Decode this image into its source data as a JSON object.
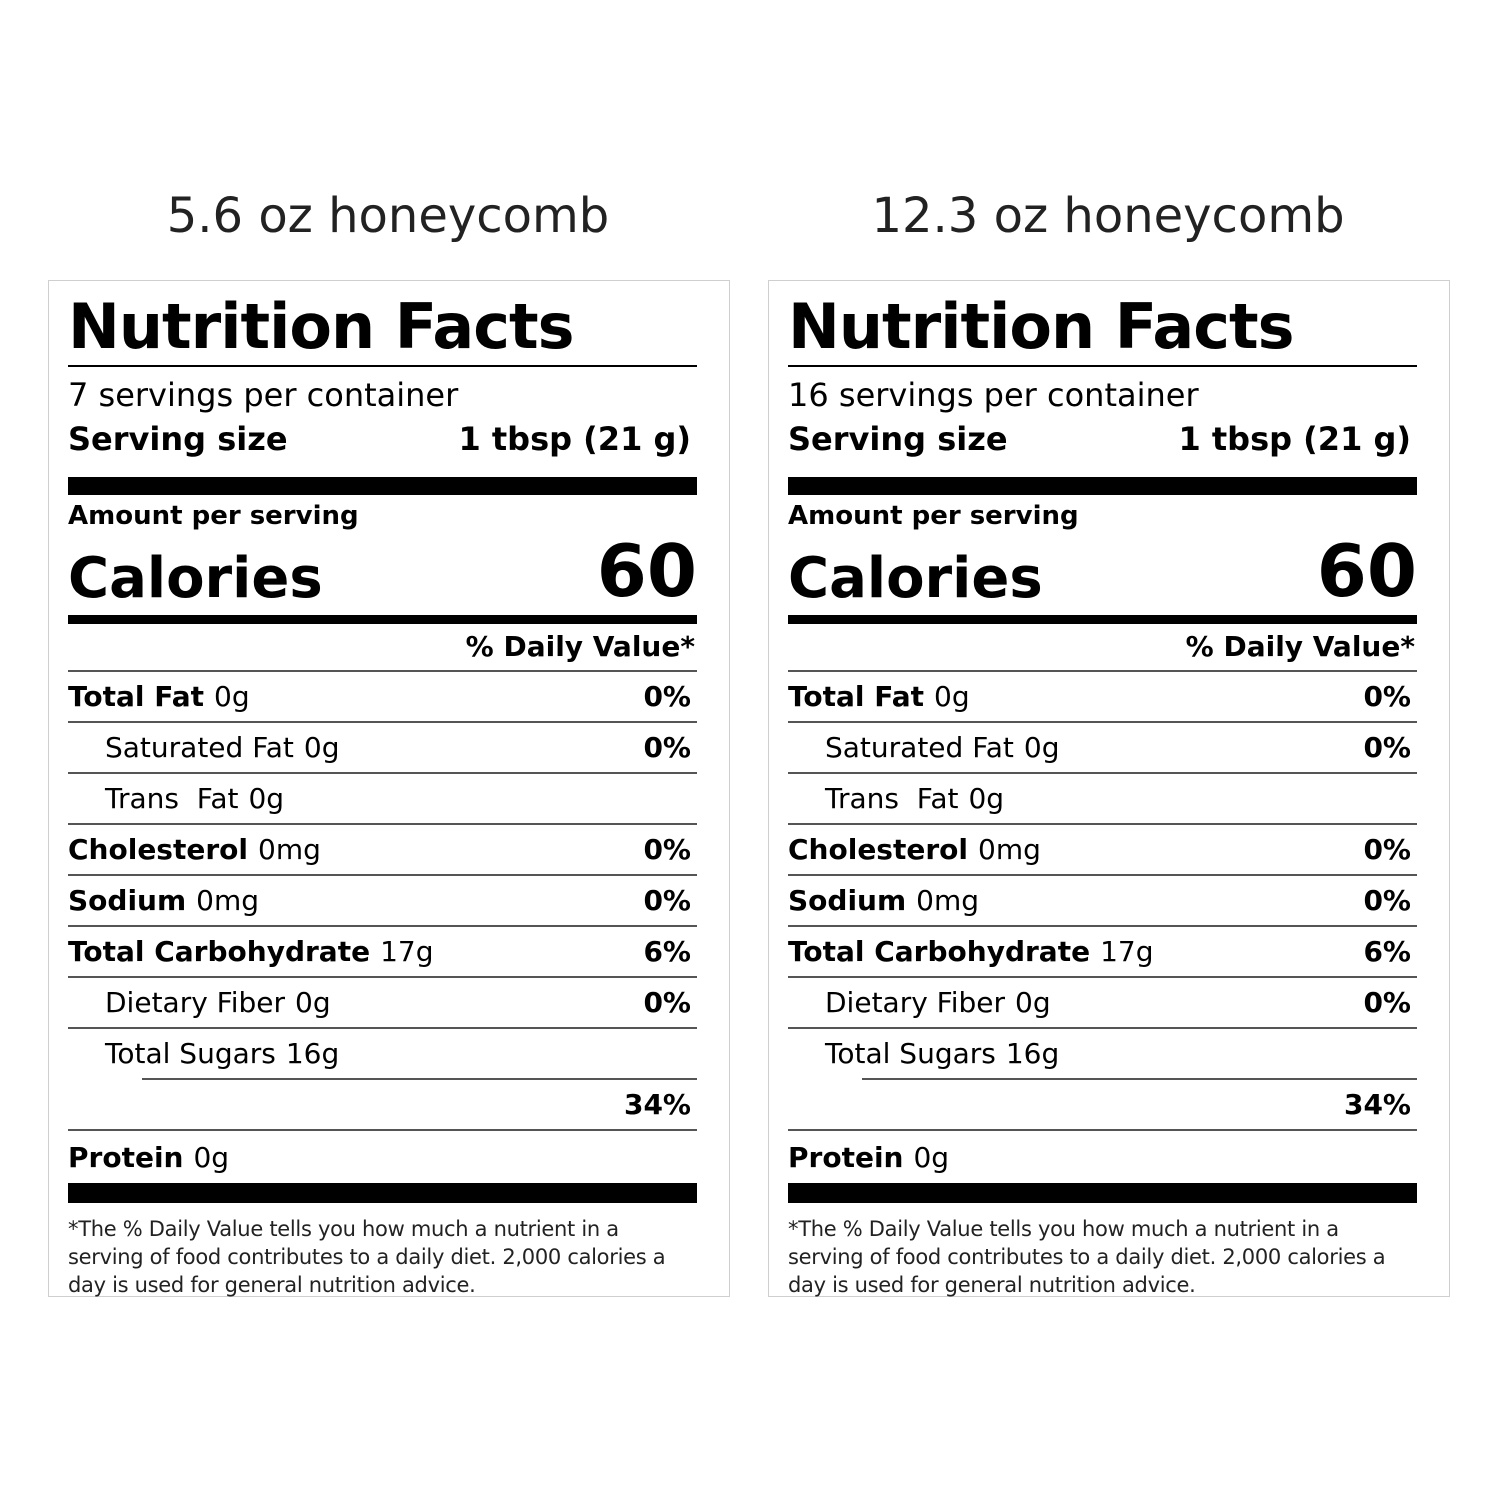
{
  "labels": [
    {
      "heading": "5.6 oz honeycomb",
      "title": "Nutrition Facts",
      "servings": "7 servings per container",
      "serving_size_label": "Serving size",
      "serving_size_value": "1 tbsp (21 g)",
      "amount_per_serving": "Amount per serving",
      "calories_label": "Calories",
      "calories_value": "60",
      "dv_header": "% Daily Value*",
      "total_fat": {
        "label": "Total Fat",
        "amount": "0g",
        "dv": "0%"
      },
      "saturated_fat": {
        "label": "Saturated Fat",
        "amount": "0g",
        "dv": "0%"
      },
      "trans_fat": {
        "label": "Trans  Fat",
        "amount": "0g"
      },
      "cholesterol": {
        "label": "Cholesterol",
        "amount": "0mg",
        "dv": "0%"
      },
      "sodium": {
        "label": "Sodium",
        "amount": "0mg",
        "dv": "0%"
      },
      "total_carb": {
        "label": "Total Carbohydrate",
        "amount": "17g",
        "dv": "6%"
      },
      "dietary_fiber": {
        "label": "Dietary Fiber",
        "amount": "0g",
        "dv": "0%"
      },
      "total_sugars": {
        "label": "Total Sugars",
        "amount": "16g"
      },
      "sugars_dv": "34%",
      "protein": {
        "label": "Protein",
        "amount": "0g"
      },
      "footnote": "*The % Daily Value tells you how much a nutrient in a serving of food contributes to a daily diet. 2,000 calories a day is used for general nutrition advice."
    },
    {
      "heading": "12.3 oz honeycomb",
      "title": "Nutrition Facts",
      "servings": "16 servings per container",
      "serving_size_label": "Serving size",
      "serving_size_value": "1 tbsp (21 g)",
      "amount_per_serving": "Amount per serving",
      "calories_label": "Calories",
      "calories_value": "60",
      "dv_header": "% Daily Value*",
      "total_fat": {
        "label": "Total Fat",
        "amount": "0g",
        "dv": "0%"
      },
      "saturated_fat": {
        "label": "Saturated Fat",
        "amount": "0g",
        "dv": "0%"
      },
      "trans_fat": {
        "label": "Trans  Fat",
        "amount": "0g"
      },
      "cholesterol": {
        "label": "Cholesterol",
        "amount": "0mg",
        "dv": "0%"
      },
      "sodium": {
        "label": "Sodium",
        "amount": "0mg",
        "dv": "0%"
      },
      "total_carb": {
        "label": "Total Carbohydrate",
        "amount": "17g",
        "dv": "6%"
      },
      "dietary_fiber": {
        "label": "Dietary Fiber",
        "amount": "0g",
        "dv": "0%"
      },
      "total_sugars": {
        "label": "Total Sugars",
        "amount": "16g"
      },
      "sugars_dv": "34%",
      "protein": {
        "label": "Protein",
        "amount": "0g"
      },
      "footnote": "*The % Daily Value tells you how much a nutrient in a serving of food contributes to a daily diet. 2,000 calories a day is used for general nutrition advice."
    }
  ]
}
